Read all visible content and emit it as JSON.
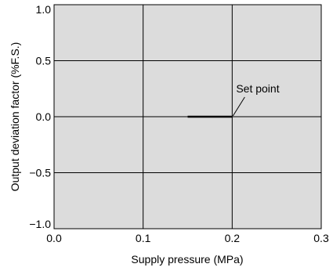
{
  "chart_data": {
    "type": "line",
    "xlabel": "Supply pressure  (MPa)",
    "ylabel": "Output deviation factor  (%F.S.)",
    "xlim": [
      0.0,
      0.3
    ],
    "ylim": [
      -1.0,
      1.0
    ],
    "x_ticks": [
      0.0,
      0.1,
      0.2,
      0.3
    ],
    "x_tick_labels": [
      "0.0",
      "0.1",
      "0.2",
      "0.3"
    ],
    "y_ticks": [
      -1.0,
      -0.5,
      0.0,
      0.5,
      1.0
    ],
    "y_tick_labels": [
      "−1.0",
      "−0.5",
      "0.0",
      "0.5",
      "1.0"
    ],
    "grid": true,
    "background_color": "#dcdcdc",
    "series": [
      {
        "x": [
          0.15,
          0.2
        ],
        "y": [
          0.0,
          0.0
        ],
        "color": "#000000"
      }
    ],
    "annotations": [
      {
        "text": "Set point",
        "x": 0.2,
        "y": 0.0
      }
    ]
  }
}
